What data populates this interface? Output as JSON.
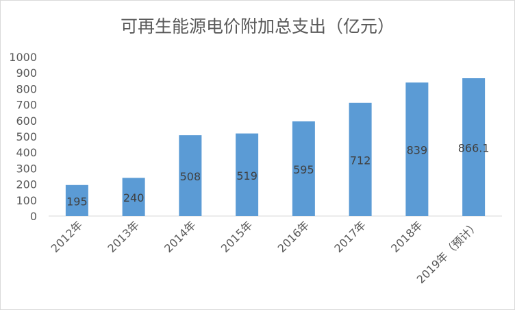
{
  "chart_data": {
    "type": "bar",
    "title": "可再生能源电价附加总支出（亿元）",
    "categories": [
      "2012年",
      "2013年",
      "2014年",
      "2015年",
      "2016年",
      "2017年",
      "2018年",
      "2019年（预计）"
    ],
    "values": [
      195,
      240,
      508,
      519,
      595,
      712,
      839,
      866.1
    ],
    "data_labels": [
      "195",
      "240",
      "508",
      "519",
      "595",
      "712",
      "839",
      "866.1"
    ],
    "ylim": [
      0,
      1000
    ],
    "yticks": [
      "0",
      "100",
      "200",
      "300",
      "400",
      "500",
      "600",
      "700",
      "800",
      "900",
      "1000"
    ],
    "xlabel": "",
    "ylabel": "",
    "grid": false,
    "legend": "none",
    "bar_color": "#5b9bd5",
    "text_color": "#595959",
    "axis_color": "#d9d9d9"
  }
}
